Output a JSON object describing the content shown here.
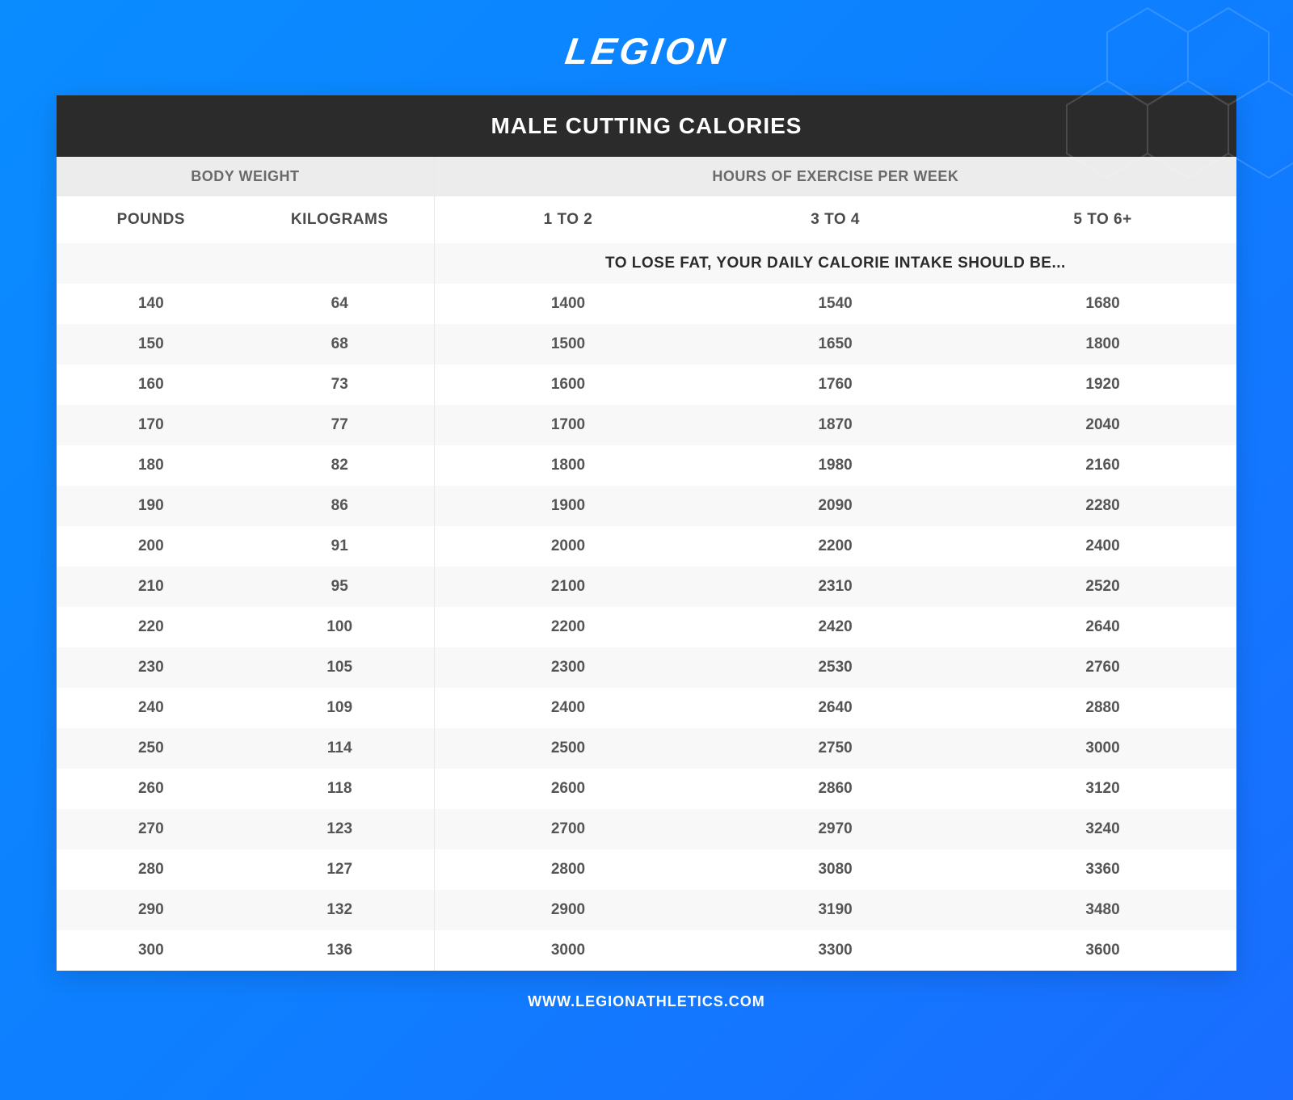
{
  "brand": {
    "logo_text": "LEGION"
  },
  "title": "MALE CUTTING CALORIES",
  "footer_url": "WWW.LEGIONATHLETICS.COM",
  "colors": {
    "bg_gradient_from": "#0a8cff",
    "bg_gradient_to": "#1a6dff",
    "title_bar_bg": "#2b2b2b",
    "title_bar_fg": "#ffffff",
    "group_header_bg": "#ececec",
    "group_header_fg": "#6a6a6a",
    "row_alt_bg": "#f8f8f8",
    "text": "#4a4a4a"
  },
  "table": {
    "group_headers": {
      "left": "BODY WEIGHT",
      "right": "HOURS OF EXERCISE PER WEEK"
    },
    "columns": [
      "POUNDS",
      "KILOGRAMS",
      "1 TO 2",
      "3 TO 4",
      "5 TO 6+"
    ],
    "note": "TO LOSE FAT, YOUR DAILY CALORIE INTAKE SHOULD BE...",
    "rows": [
      [
        "140",
        "64",
        "1400",
        "1540",
        "1680"
      ],
      [
        "150",
        "68",
        "1500",
        "1650",
        "1800"
      ],
      [
        "160",
        "73",
        "1600",
        "1760",
        "1920"
      ],
      [
        "170",
        "77",
        "1700",
        "1870",
        "2040"
      ],
      [
        "180",
        "82",
        "1800",
        "1980",
        "2160"
      ],
      [
        "190",
        "86",
        "1900",
        "2090",
        "2280"
      ],
      [
        "200",
        "91",
        "2000",
        "2200",
        "2400"
      ],
      [
        "210",
        "95",
        "2100",
        "2310",
        "2520"
      ],
      [
        "220",
        "100",
        "2200",
        "2420",
        "2640"
      ],
      [
        "230",
        "105",
        "2300",
        "2530",
        "2760"
      ],
      [
        "240",
        "109",
        "2400",
        "2640",
        "2880"
      ],
      [
        "250",
        "114",
        "2500",
        "2750",
        "3000"
      ],
      [
        "260",
        "118",
        "2600",
        "2860",
        "3120"
      ],
      [
        "270",
        "123",
        "2700",
        "2970",
        "3240"
      ],
      [
        "280",
        "127",
        "2800",
        "3080",
        "3360"
      ],
      [
        "290",
        "132",
        "2900",
        "3190",
        "3480"
      ],
      [
        "300",
        "136",
        "3000",
        "3300",
        "3600"
      ]
    ]
  }
}
